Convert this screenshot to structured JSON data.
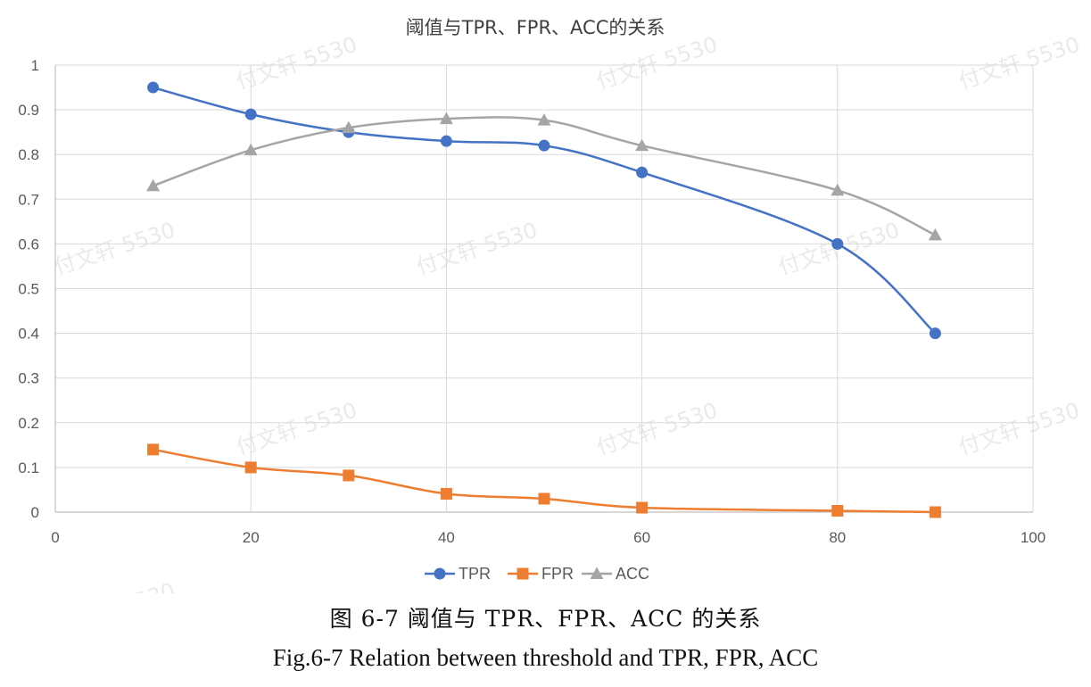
{
  "chart_data": {
    "type": "line",
    "title": "阈值与TPR、FPR、ACC的关系",
    "xlabel": "",
    "ylabel": "",
    "xlim": [
      0,
      100
    ],
    "ylim": [
      0,
      1
    ],
    "x_ticks": [
      0,
      20,
      40,
      60,
      80,
      100
    ],
    "y_ticks": [
      0,
      0.1,
      0.2,
      0.3,
      0.4,
      0.5,
      0.6,
      0.7,
      0.8,
      0.9,
      1
    ],
    "x_tick_labels": [
      "0",
      "20",
      "40",
      "60",
      "80",
      "100"
    ],
    "y_tick_labels": [
      "0",
      "0.1",
      "0.2",
      "0.3",
      "0.4",
      "0.5",
      "0.6",
      "0.7",
      "0.8",
      "0.9",
      "1"
    ],
    "grid": true,
    "legend_position": "bottom",
    "smooth": true,
    "x": [
      10,
      20,
      30,
      40,
      50,
      60,
      80,
      90
    ],
    "series": [
      {
        "name": "TPR",
        "color": "#4472c4",
        "marker": "circle",
        "values": [
          0.95,
          0.89,
          0.85,
          0.83,
          0.82,
          0.76,
          0.6,
          0.4
        ]
      },
      {
        "name": "FPR",
        "color": "#ed7d31",
        "marker": "square",
        "values": [
          0.14,
          0.1,
          0.082,
          0.041,
          0.03,
          0.01,
          0.003,
          0.0
        ]
      },
      {
        "name": "ACC",
        "color": "#a5a5a5",
        "marker": "triangle",
        "values": [
          0.73,
          0.81,
          0.86,
          0.88,
          0.877,
          0.82,
          0.72,
          0.62
        ]
      }
    ]
  },
  "caption": {
    "cn": "图 6-7 阈值与 TPR、FPR、ACC 的关系",
    "en": "Fig.6-7 Relation between threshold and TPR, FPR, ACC"
  },
  "watermark": "付文轩 5530",
  "colors": {
    "grid": "#d9d9d9",
    "axis": "#bfbfbf",
    "text": "#595959"
  }
}
